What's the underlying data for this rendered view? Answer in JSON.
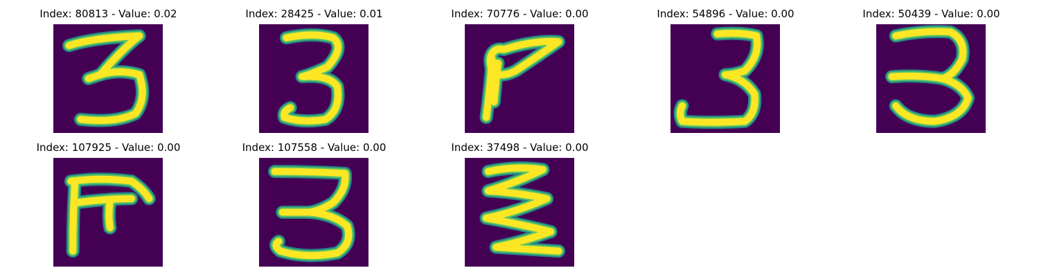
{
  "colors": {
    "background": "#440154",
    "stroke_mid": "#21918c",
    "stroke_core": "#fde725",
    "stroke_edge": "#5ec962"
  },
  "panels": [
    {
      "title": "Index: 80813 - Value: 0.02",
      "digit": "3-a"
    },
    {
      "title": "Index: 28425 - Value: 0.01",
      "digit": "3-b"
    },
    {
      "title": "Index: 70776 - Value: 0.00",
      "digit": "7-like"
    },
    {
      "title": "Index: 54896 - Value: 0.00",
      "digit": "3-c"
    },
    {
      "title": "Index: 50439 - Value: 0.00",
      "digit": "3-d"
    },
    {
      "title": "Index: 107925 - Value: 0.00",
      "digit": "E-like"
    },
    {
      "title": "Index: 107558 - Value: 0.00",
      "digit": "3-e"
    },
    {
      "title": "Index: 37498 - Value: 0.00",
      "digit": "zigzag"
    }
  ]
}
